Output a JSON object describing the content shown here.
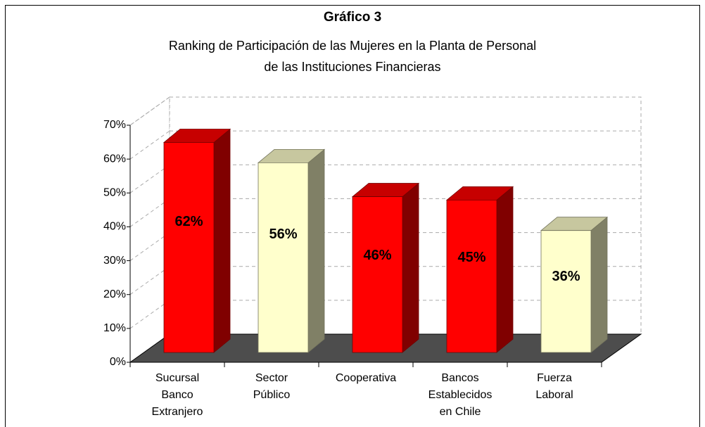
{
  "chart_data": {
    "type": "bar3d",
    "title": "Gráfico 3",
    "subtitle": "Ranking de Participación de las Mujeres en la Planta de Personal\nde las Instituciones Financieras",
    "categories": [
      "Sucursal\nBanco\nExtranjero",
      "Sector\nPúblico",
      "Cooperativa",
      "Bancos\nEstablecidos\nen Chile",
      "Fuerza\nLaboral"
    ],
    "values": [
      62,
      56,
      46,
      45,
      36
    ],
    "value_labels": [
      "62%",
      "56%",
      "46%",
      "45%",
      "36%"
    ],
    "colors": [
      "#ff0000",
      "#ffffcc",
      "#ff0000",
      "#ff0000",
      "#ffffcc"
    ],
    "ylim": [
      0,
      70
    ],
    "yticks": [
      {
        "value": 0,
        "label": "0%"
      },
      {
        "value": 10,
        "label": "10%"
      },
      {
        "value": 20,
        "label": "20%"
      },
      {
        "value": 30,
        "label": "30%"
      },
      {
        "value": 40,
        "label": "40%"
      },
      {
        "value": 50,
        "label": "50%"
      },
      {
        "value": 60,
        "label": "60%"
      },
      {
        "value": 70,
        "label": "70%"
      }
    ],
    "grid": true
  }
}
